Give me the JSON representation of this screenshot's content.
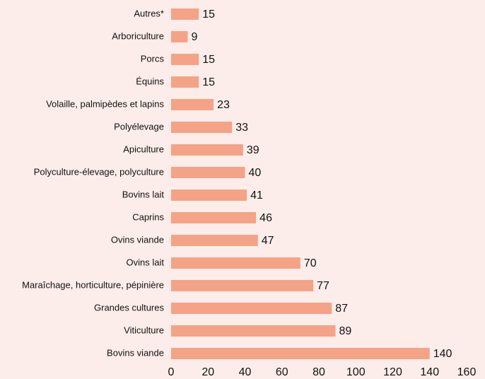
{
  "chart_data": {
    "type": "hbar",
    "categories": [
      "Autres*",
      "Arboriculture",
      "Porcs",
      "Équins",
      "Volaille, palmipèdes et lapins",
      "Polyélevage",
      "Apiculture",
      "Polyculture-élevage, polyculture",
      "Bovins lait",
      "Caprins",
      "Ovins viande",
      "Ovins lait",
      "Maraîchage, horticulture, pépinière",
      "Grandes cultures",
      "Viticulture",
      "Bovins viande"
    ],
    "values": [
      15,
      9,
      15,
      15,
      23,
      33,
      39,
      40,
      41,
      46,
      47,
      70,
      77,
      87,
      89,
      140
    ],
    "color": "#f4a386",
    "xlim": [
      0,
      160
    ],
    "xticks": [
      0,
      20,
      40,
      60,
      80,
      100,
      120,
      140,
      160
    ],
    "grid": false
  }
}
